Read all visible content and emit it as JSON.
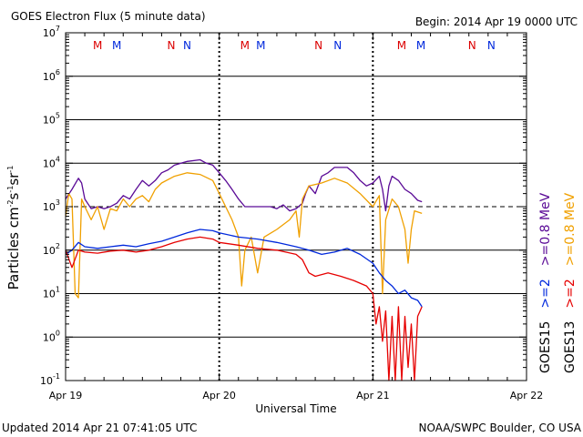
{
  "header": {
    "title": "GOES Electron Flux (5 minute data)",
    "begin": "Begin: 2014 Apr 19 0000 UTC"
  },
  "footer": {
    "updated": "Updated 2014 Apr 21 07:41:05 UTC",
    "credit": "NOAA/SWPC Boulder, CO USA"
  },
  "colors": {
    "goes15_08": "#5a0a96",
    "goes13_08": "#f0a000",
    "goes15_2": "#0028dc",
    "goes13_2": "#e60000",
    "marker_m": "#dc0000",
    "marker_n": "#0028dc"
  },
  "chart_data": {
    "type": "line",
    "title": "GOES Electron Flux (5 minute data)",
    "xlabel": "Universal Time",
    "ylabel": "Particles cm-2s-1sr-1",
    "ylabel_parts": {
      "base": "Particles cm",
      "exp1": "-2",
      "mid": "s",
      "exp2": "-1",
      "sr": "sr",
      "exp3": "-1"
    },
    "y_scale": "log",
    "ylim": [
      0.1,
      10000000
    ],
    "y_ticks": [
      {
        "value": 0.1,
        "base": "10",
        "exp": "-1"
      },
      {
        "value": 1,
        "base": "10",
        "exp": "0"
      },
      {
        "value": 10,
        "base": "10",
        "exp": "1"
      },
      {
        "value": 100,
        "base": "10",
        "exp": "2"
      },
      {
        "value": 1000,
        "base": "10",
        "exp": "3"
      },
      {
        "value": 10000,
        "base": "10",
        "exp": "4"
      },
      {
        "value": 100000,
        "base": "10",
        "exp": "5"
      },
      {
        "value": 1000000,
        "base": "10",
        "exp": "6"
      },
      {
        "value": 10000000,
        "base": "10",
        "exp": "7"
      }
    ],
    "xlim": [
      "2014-04-19 00:00",
      "2014-04-22 00:00"
    ],
    "x_ticks": [
      {
        "value": "2014-04-19 00:00",
        "label": "Apr 19"
      },
      {
        "value": "2014-04-20 00:00",
        "label": "Apr 20"
      },
      {
        "value": "2014-04-21 00:00",
        "label": "Apr 21"
      },
      {
        "value": "2014-04-22 00:00",
        "label": "Apr 22"
      }
    ],
    "dashed_threshold": 1000,
    "grid": true,
    "markers": [
      {
        "x": "2014-04-19 05:00",
        "label": "M",
        "sat": "GOES13"
      },
      {
        "x": "2014-04-19 08:00",
        "label": "M",
        "sat": "GOES15"
      },
      {
        "x": "2014-04-19 16:30",
        "label": "N",
        "sat": "GOES13"
      },
      {
        "x": "2014-04-19 19:00",
        "label": "N",
        "sat": "GOES15"
      },
      {
        "x": "2014-04-20 04:00",
        "label": "M",
        "sat": "GOES13"
      },
      {
        "x": "2014-04-20 06:30",
        "label": "M",
        "sat": "GOES15"
      },
      {
        "x": "2014-04-20 15:30",
        "label": "N",
        "sat": "GOES13"
      },
      {
        "x": "2014-04-20 18:30",
        "label": "N",
        "sat": "GOES15"
      },
      {
        "x": "2014-04-21 04:30",
        "label": "M",
        "sat": "GOES13"
      },
      {
        "x": "2014-04-21 07:30",
        "label": "M",
        "sat": "GOES15"
      },
      {
        "x": "2014-04-21 15:30",
        "label": "N",
        "sat": "GOES13"
      },
      {
        "x": "2014-04-21 18:30",
        "label": "N",
        "sat": "GOES15"
      }
    ],
    "legend": [
      {
        "sat": "GOES15",
        "g2": ">=2",
        "g08": ">=0.8 MeV"
      },
      {
        "sat": "GOES13",
        "g2": ">=2",
        "g08": ">=0.8 MeV"
      }
    ],
    "series": [
      {
        "name": "GOES15 >=0.8 MeV",
        "color": "#5a0a96",
        "points": [
          [
            "2014-04-19 00:00",
            1500
          ],
          [
            "2014-04-19 01:00",
            2500
          ],
          [
            "2014-04-19 02:00",
            4500
          ],
          [
            "2014-04-19 02:30",
            3500
          ],
          [
            "2014-04-19 03:00",
            1500
          ],
          [
            "2014-04-19 04:00",
            900
          ],
          [
            "2014-04-19 05:00",
            1000
          ],
          [
            "2014-04-19 06:00",
            900
          ],
          [
            "2014-04-19 07:00",
            1000
          ],
          [
            "2014-04-19 08:00",
            1200
          ],
          [
            "2014-04-19 09:00",
            1800
          ],
          [
            "2014-04-19 10:00",
            1500
          ],
          [
            "2014-04-19 11:00",
            2500
          ],
          [
            "2014-04-19 12:00",
            4000
          ],
          [
            "2014-04-19 13:00",
            3000
          ],
          [
            "2014-04-19 14:00",
            4000
          ],
          [
            "2014-04-19 15:00",
            6000
          ],
          [
            "2014-04-19 16:00",
            7000
          ],
          [
            "2014-04-19 17:00",
            9000
          ],
          [
            "2014-04-19 19:00",
            11000
          ],
          [
            "2014-04-19 21:00",
            12000
          ],
          [
            "2014-04-19 22:00",
            10000
          ],
          [
            "2014-04-19 23:00",
            9000
          ],
          [
            "2014-04-20 00:00",
            6000
          ],
          [
            "2014-04-20 01:00",
            4000
          ],
          [
            "2014-04-20 02:00",
            2500
          ],
          [
            "2014-04-20 03:00",
            1500
          ],
          [
            "2014-04-20 04:00",
            1000
          ],
          [
            "2014-04-20 06:00",
            1000
          ],
          [
            "2014-04-20 08:00",
            1000
          ],
          [
            "2014-04-20 09:00",
            900
          ],
          [
            "2014-04-20 10:00",
            1100
          ],
          [
            "2014-04-20 11:00",
            800
          ],
          [
            "2014-04-20 12:00",
            900
          ],
          [
            "2014-04-20 13:00",
            1200
          ],
          [
            "2014-04-20 13:30",
            2000
          ],
          [
            "2014-04-20 14:00",
            3000
          ],
          [
            "2014-04-20 15:00",
            2000
          ],
          [
            "2014-04-20 16:00",
            5000
          ],
          [
            "2014-04-20 17:00",
            6000
          ],
          [
            "2014-04-20 18:00",
            8000
          ],
          [
            "2014-04-20 20:00",
            8000
          ],
          [
            "2014-04-20 21:00",
            6000
          ],
          [
            "2014-04-20 22:00",
            4000
          ],
          [
            "2014-04-20 23:00",
            3000
          ],
          [
            "2014-04-21 00:00",
            3500
          ],
          [
            "2014-04-21 01:00",
            5000
          ],
          [
            "2014-04-21 01:30",
            2500
          ],
          [
            "2014-04-21 02:00",
            800
          ],
          [
            "2014-04-21 02:30",
            3000
          ],
          [
            "2014-04-21 03:00",
            5000
          ],
          [
            "2014-04-21 04:00",
            4000
          ],
          [
            "2014-04-21 05:00",
            2500
          ],
          [
            "2014-04-21 06:00",
            2000
          ],
          [
            "2014-04-21 07:00",
            1400
          ],
          [
            "2014-04-21 07:40",
            1300
          ]
        ]
      },
      {
        "name": "GOES13 >=0.8 MeV",
        "color": "#f0a000",
        "points": [
          [
            "2014-04-19 00:00",
            600
          ],
          [
            "2014-04-19 00:30",
            2000
          ],
          [
            "2014-04-19 01:00",
            1500
          ],
          [
            "2014-04-19 01:30",
            10
          ],
          [
            "2014-04-19 02:00",
            8
          ],
          [
            "2014-04-19 02:30",
            1500
          ],
          [
            "2014-04-19 03:00",
            1000
          ],
          [
            "2014-04-19 04:00",
            500
          ],
          [
            "2014-04-19 05:00",
            1000
          ],
          [
            "2014-04-19 06:00",
            300
          ],
          [
            "2014-04-19 07:00",
            900
          ],
          [
            "2014-04-19 08:00",
            800
          ],
          [
            "2014-04-19 09:00",
            1500
          ],
          [
            "2014-04-19 10:00",
            1000
          ],
          [
            "2014-04-19 11:00",
            1500
          ],
          [
            "2014-04-19 12:00",
            1800
          ],
          [
            "2014-04-19 13:00",
            1300
          ],
          [
            "2014-04-19 14:00",
            2500
          ],
          [
            "2014-04-19 15:00",
            3500
          ],
          [
            "2014-04-19 17:00",
            5000
          ],
          [
            "2014-04-19 19:00",
            6000
          ],
          [
            "2014-04-19 21:00",
            5500
          ],
          [
            "2014-04-19 23:00",
            4000
          ],
          [
            "2014-04-20 00:00",
            2000
          ],
          [
            "2014-04-20 01:00",
            1000
          ],
          [
            "2014-04-20 02:00",
            500
          ],
          [
            "2014-04-20 03:00",
            200
          ],
          [
            "2014-04-20 03:30",
            15
          ],
          [
            "2014-04-20 04:00",
            100
          ],
          [
            "2014-04-20 05:00",
            200
          ],
          [
            "2014-04-20 06:00",
            30
          ],
          [
            "2014-04-20 07:00",
            200
          ],
          [
            "2014-04-20 09:00",
            300
          ],
          [
            "2014-04-20 11:00",
            500
          ],
          [
            "2014-04-20 12:00",
            800
          ],
          [
            "2014-04-20 12:30",
            200
          ],
          [
            "2014-04-20 13:00",
            1500
          ],
          [
            "2014-04-20 14:00",
            3000
          ],
          [
            "2014-04-20 16:00",
            3500
          ],
          [
            "2014-04-20 18:00",
            4500
          ],
          [
            "2014-04-20 20:00",
            3500
          ],
          [
            "2014-04-20 22:00",
            2000
          ],
          [
            "2014-04-21 00:00",
            1000
          ],
          [
            "2014-04-21 01:00",
            1800
          ],
          [
            "2014-04-21 01:30",
            10
          ],
          [
            "2014-04-21 02:00",
            500
          ],
          [
            "2014-04-21 03:00",
            1500
          ],
          [
            "2014-04-21 04:00",
            1000
          ],
          [
            "2014-04-21 05:00",
            300
          ],
          [
            "2014-04-21 05:30",
            50
          ],
          [
            "2014-04-21 06:00",
            300
          ],
          [
            "2014-04-21 06:30",
            800
          ],
          [
            "2014-04-21 07:40",
            700
          ]
        ]
      },
      {
        "name": "GOES15 >=2",
        "color": "#0028dc",
        "points": [
          [
            "2014-04-19 00:00",
            80
          ],
          [
            "2014-04-19 01:00",
            100
          ],
          [
            "2014-04-19 02:00",
            150
          ],
          [
            "2014-04-19 03:00",
            120
          ],
          [
            "2014-04-19 05:00",
            110
          ],
          [
            "2014-04-19 07:00",
            120
          ],
          [
            "2014-04-19 09:00",
            130
          ],
          [
            "2014-04-19 11:00",
            120
          ],
          [
            "2014-04-19 13:00",
            140
          ],
          [
            "2014-04-19 15:00",
            160
          ],
          [
            "2014-04-19 17:00",
            200
          ],
          [
            "2014-04-19 19:00",
            250
          ],
          [
            "2014-04-19 21:00",
            300
          ],
          [
            "2014-04-19 23:00",
            280
          ],
          [
            "2014-04-20 00:00",
            250
          ],
          [
            "2014-04-20 03:00",
            200
          ],
          [
            "2014-04-20 06:00",
            180
          ],
          [
            "2014-04-20 09:00",
            150
          ],
          [
            "2014-04-20 12:00",
            120
          ],
          [
            "2014-04-20 14:00",
            100
          ],
          [
            "2014-04-20 16:00",
            80
          ],
          [
            "2014-04-20 18:00",
            90
          ],
          [
            "2014-04-20 20:00",
            110
          ],
          [
            "2014-04-20 22:00",
            80
          ],
          [
            "2014-04-21 00:00",
            50
          ],
          [
            "2014-04-21 01:00",
            30
          ],
          [
            "2014-04-21 02:00",
            20
          ],
          [
            "2014-04-21 03:00",
            15
          ],
          [
            "2014-04-21 04:00",
            10
          ],
          [
            "2014-04-21 05:00",
            12
          ],
          [
            "2014-04-21 06:00",
            8
          ],
          [
            "2014-04-21 07:00",
            7
          ],
          [
            "2014-04-21 07:40",
            5
          ]
        ]
      },
      {
        "name": "GOES13 >=2",
        "color": "#e60000",
        "points": [
          [
            "2014-04-19 00:00",
            100
          ],
          [
            "2014-04-19 01:00",
            40
          ],
          [
            "2014-04-19 02:00",
            100
          ],
          [
            "2014-04-19 03:00",
            90
          ],
          [
            "2014-04-19 05:00",
            85
          ],
          [
            "2014-04-19 07:00",
            95
          ],
          [
            "2014-04-19 09:00",
            100
          ],
          [
            "2014-04-19 11:00",
            90
          ],
          [
            "2014-04-19 13:00",
            100
          ],
          [
            "2014-04-19 15:00",
            120
          ],
          [
            "2014-04-19 17:00",
            150
          ],
          [
            "2014-04-19 19:00",
            180
          ],
          [
            "2014-04-19 21:00",
            200
          ],
          [
            "2014-04-19 23:00",
            180
          ],
          [
            "2014-04-20 00:00",
            150
          ],
          [
            "2014-04-20 03:00",
            130
          ],
          [
            "2014-04-20 06:00",
            110
          ],
          [
            "2014-04-20 09:00",
            100
          ],
          [
            "2014-04-20 12:00",
            80
          ],
          [
            "2014-04-20 13:00",
            60
          ],
          [
            "2014-04-20 14:00",
            30
          ],
          [
            "2014-04-20 15:00",
            25
          ],
          [
            "2014-04-20 17:00",
            30
          ],
          [
            "2014-04-20 19:00",
            25
          ],
          [
            "2014-04-20 21:00",
            20
          ],
          [
            "2014-04-20 23:00",
            15
          ],
          [
            "2014-04-21 00:00",
            10
          ],
          [
            "2014-04-21 00:30",
            2
          ],
          [
            "2014-04-21 01:00",
            5
          ],
          [
            "2014-04-21 01:30",
            0.8
          ],
          [
            "2014-04-21 02:00",
            4
          ],
          [
            "2014-04-21 02:30",
            0.1
          ],
          [
            "2014-04-21 03:00",
            3
          ],
          [
            "2014-04-21 03:30",
            0.1
          ],
          [
            "2014-04-21 04:00",
            5
          ],
          [
            "2014-04-21 04:30",
            0.1
          ],
          [
            "2014-04-21 05:00",
            3
          ],
          [
            "2014-04-21 05:30",
            0.2
          ],
          [
            "2014-04-21 06:00",
            2
          ],
          [
            "2014-04-21 06:30",
            0.1
          ],
          [
            "2014-04-21 07:00",
            3
          ],
          [
            "2014-04-21 07:40",
            5
          ]
        ]
      }
    ]
  }
}
